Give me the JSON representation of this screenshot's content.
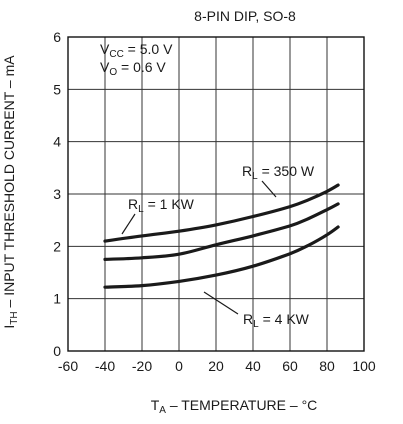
{
  "chart_data": {
    "type": "line",
    "title": "8-PIN DIP, SO-8",
    "conditions": {
      "vcc_main": "V",
      "vcc_sub": "CC",
      "vcc_value": " = 5.0 V",
      "vo_main": "V",
      "vo_sub": "O",
      "vo_value": " = 0.6 V"
    },
    "xlabel": {
      "main": "T",
      "sub": "A",
      "rest": " – TEMPERATURE – °C"
    },
    "ylabel": {
      "main": "I",
      "sub": "TH",
      "rest": " – INPUT THRESHOLD CURRENT – mA"
    },
    "xlim": [
      -60,
      100
    ],
    "ylim": [
      0,
      6
    ],
    "x_ticks": [
      -60,
      -40,
      -20,
      0,
      20,
      40,
      60,
      80,
      100
    ],
    "y_ticks": [
      0,
      1,
      2,
      3,
      4,
      5,
      6
    ],
    "grid": true,
    "series": [
      {
        "name_main": "R",
        "name_sub": "L",
        "name_rest": " = 350 W",
        "x": [
          -40,
          -20,
          0,
          20,
          40,
          60,
          70,
          80,
          86
        ],
        "y": [
          2.1,
          2.2,
          2.29,
          2.41,
          2.57,
          2.76,
          2.89,
          3.05,
          3.17
        ]
      },
      {
        "name_main": "R",
        "name_sub": "L",
        "name_rest": " = 1 KW",
        "x": [
          -40,
          -20,
          0,
          20,
          40,
          60,
          70,
          80,
          86
        ],
        "y": [
          1.75,
          1.78,
          1.85,
          2.03,
          2.2,
          2.39,
          2.53,
          2.7,
          2.81
        ]
      },
      {
        "name_main": "R",
        "name_sub": "L",
        "name_rest": " = 4 KW",
        "x": [
          -40,
          -20,
          0,
          20,
          40,
          60,
          70,
          80,
          86
        ],
        "y": [
          1.22,
          1.25,
          1.33,
          1.45,
          1.62,
          1.86,
          2.02,
          2.22,
          2.37
        ]
      }
    ]
  }
}
